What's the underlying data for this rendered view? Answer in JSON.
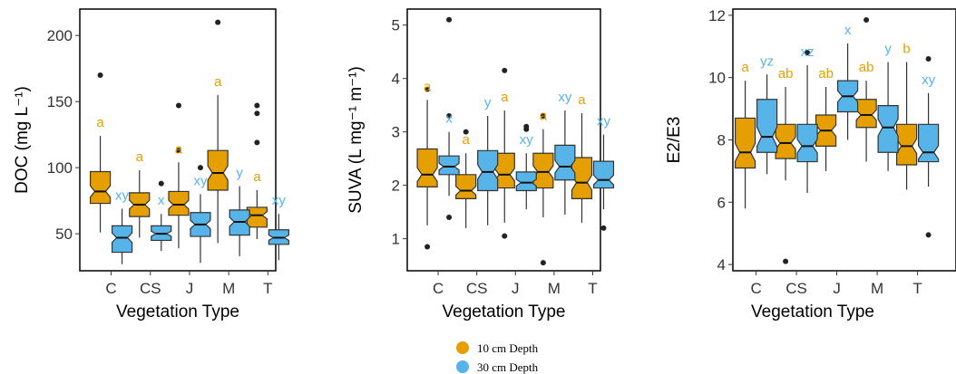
{
  "colors": {
    "depth10": "#E69F00",
    "depth30": "#56B4E9",
    "outline": "#333333"
  },
  "legend": {
    "position": "bottom-center",
    "items": [
      {
        "label": "10 cm Depth",
        "color": "#E69F00"
      },
      {
        "label": "30 cm Depth",
        "color": "#56B4E9"
      }
    ]
  },
  "chart_data": [
    {
      "type": "boxplot",
      "xlabel": "Vegetation Type",
      "ylabel": "DOC (mg L⁻¹)",
      "ylim": [
        22,
        220
      ],
      "yticks": [
        50,
        100,
        150,
        200
      ],
      "categories": [
        "C",
        "CS",
        "J",
        "M",
        "T"
      ],
      "series": [
        {
          "name": "10 cm Depth",
          "boxes": [
            {
              "min": 51,
              "q1": 73,
              "median": 82,
              "q3": 97,
              "max": 124,
              "outliers": [
                170
              ],
              "sig": "a"
            },
            {
              "min": 47,
              "q1": 63,
              "median": 72,
              "q3": 81,
              "max": 98,
              "outliers": [],
              "sig": "a"
            },
            {
              "min": 39,
              "q1": 64,
              "median": 72,
              "q3": 82,
              "max": 104,
              "outliers": [
                113,
                147
              ],
              "sig": "a"
            },
            {
              "min": 43,
              "q1": 83,
              "median": 96,
              "q3": 113,
              "max": 155,
              "outliers": [
                210
              ],
              "sig": "a"
            },
            {
              "min": 46,
              "q1": 55,
              "median": 64,
              "q3": 70,
              "max": 83,
              "outliers": [
                119,
                141,
                147
              ],
              "sig": "a"
            }
          ]
        },
        {
          "name": "30 cm Depth",
          "boxes": [
            {
              "min": 27,
              "q1": 36,
              "median": 47,
              "q3": 56,
              "max": 69,
              "outliers": [],
              "sig": "xy"
            },
            {
              "min": 37,
              "q1": 45,
              "median": 50,
              "q3": 56,
              "max": 65,
              "outliers": [
                88
              ],
              "sig": "x"
            },
            {
              "min": 28,
              "q1": 48,
              "median": 57,
              "q3": 66,
              "max": 80,
              "outliers": [
                100
              ],
              "sig": "xy"
            },
            {
              "min": 33,
              "q1": 49,
              "median": 59,
              "q3": 68,
              "max": 86,
              "outliers": [],
              "sig": "y"
            },
            {
              "min": 30,
              "q1": 42,
              "median": 47,
              "q3": 53,
              "max": 65,
              "outliers": [],
              "sig": "xy"
            }
          ]
        }
      ]
    },
    {
      "type": "boxplot",
      "xlabel": "Vegetation Type",
      "ylabel": "SUVA (L mg⁻¹ m⁻¹)",
      "ylim": [
        0.4,
        5.3
      ],
      "yticks": [
        1,
        2,
        3,
        4,
        5
      ],
      "categories": [
        "C",
        "CS",
        "J",
        "M",
        "T"
      ],
      "series": [
        {
          "name": "10 cm Depth",
          "boxes": [
            {
              "min": 1.25,
              "q1": 1.97,
              "median": 2.2,
              "q3": 2.68,
              "max": 3.6,
              "outliers": [
                0.85,
                3.8
              ],
              "sig": "a"
            },
            {
              "min": 1.2,
              "q1": 1.75,
              "median": 1.9,
              "q3": 2.2,
              "max": 2.6,
              "outliers": [
                3.0
              ],
              "sig": "a"
            },
            {
              "min": 1.3,
              "q1": 1.95,
              "median": 2.2,
              "q3": 2.6,
              "max": 3.4,
              "outliers": [
                1.05,
                4.15
              ],
              "sig": "a"
            },
            {
              "min": 1.4,
              "q1": 1.95,
              "median": 2.25,
              "q3": 2.6,
              "max": 3.05,
              "outliers": [
                0.55,
                3.3
              ],
              "sig": "a"
            },
            {
              "min": 1.3,
              "q1": 1.75,
              "median": 2.05,
              "q3": 2.52,
              "max": 3.35,
              "outliers": [],
              "sig": "a"
            }
          ]
        },
        {
          "name": "30 cm Depth",
          "boxes": [
            {
              "min": 1.8,
              "q1": 2.2,
              "median": 2.35,
              "q3": 2.55,
              "max": 3.0,
              "outliers": [
                1.4,
                3.3,
                5.1
              ],
              "sig": "x"
            },
            {
              "min": 1.25,
              "q1": 1.9,
              "median": 2.25,
              "q3": 2.65,
              "max": 3.3,
              "outliers": [],
              "sig": "y"
            },
            {
              "min": 1.55,
              "q1": 1.9,
              "median": 2.05,
              "q3": 2.25,
              "max": 2.6,
              "outliers": [
                3.05,
                3.1
              ],
              "sig": "xy"
            },
            {
              "min": 1.45,
              "q1": 2.1,
              "median": 2.35,
              "q3": 2.75,
              "max": 3.4,
              "outliers": [],
              "sig": "xy"
            },
            {
              "min": 1.55,
              "q1": 1.95,
              "median": 2.1,
              "q3": 2.45,
              "max": 2.95,
              "outliers": [
                1.2
              ],
              "sig": "xy"
            }
          ]
        }
      ]
    },
    {
      "type": "boxplot",
      "xlabel": "Vegetation Type",
      "ylabel": "E2/E3",
      "ylim": [
        3.8,
        12.2
      ],
      "yticks": [
        4,
        6,
        8,
        10,
        12
      ],
      "categories": [
        "C",
        "CS",
        "J",
        "M",
        "T"
      ],
      "series": [
        {
          "name": "10 cm Depth",
          "boxes": [
            {
              "min": 5.8,
              "q1": 7.1,
              "median": 7.6,
              "q3": 8.7,
              "max": 9.9,
              "outliers": [],
              "sig": "a"
            },
            {
              "min": 6.7,
              "q1": 7.4,
              "median": 7.9,
              "q3": 8.5,
              "max": 9.7,
              "outliers": [
                4.1
              ],
              "sig": "ab"
            },
            {
              "min": 7.0,
              "q1": 7.8,
              "median": 8.3,
              "q3": 8.8,
              "max": 9.7,
              "outliers": [],
              "sig": "ab"
            },
            {
              "min": 7.3,
              "q1": 8.4,
              "median": 8.8,
              "q3": 9.3,
              "max": 9.9,
              "outliers": [
                11.85
              ],
              "sig": "ab"
            },
            {
              "min": 6.4,
              "q1": 7.2,
              "median": 7.8,
              "q3": 8.5,
              "max": 10.5,
              "outliers": [],
              "sig": "b"
            }
          ]
        },
        {
          "name": "30 cm Depth",
          "boxes": [
            {
              "min": 6.9,
              "q1": 7.6,
              "median": 8.1,
              "q3": 9.3,
              "max": 10.1,
              "outliers": [],
              "sig": "yz"
            },
            {
              "min": 6.3,
              "q1": 7.3,
              "median": 7.8,
              "q3": 8.5,
              "max": 10.4,
              "outliers": [
                10.8
              ],
              "sig": "xz"
            },
            {
              "min": 8.0,
              "q1": 8.9,
              "median": 9.4,
              "q3": 9.9,
              "max": 11.1,
              "outliers": [],
              "sig": "x"
            },
            {
              "min": 7.0,
              "q1": 7.6,
              "median": 8.4,
              "q3": 9.1,
              "max": 10.5,
              "outliers": [],
              "sig": "y"
            },
            {
              "min": 6.5,
              "q1": 7.3,
              "median": 7.6,
              "q3": 8.5,
              "max": 9.5,
              "outliers": [
                4.95,
                10.6
              ],
              "sig": "xy"
            }
          ]
        }
      ]
    }
  ]
}
